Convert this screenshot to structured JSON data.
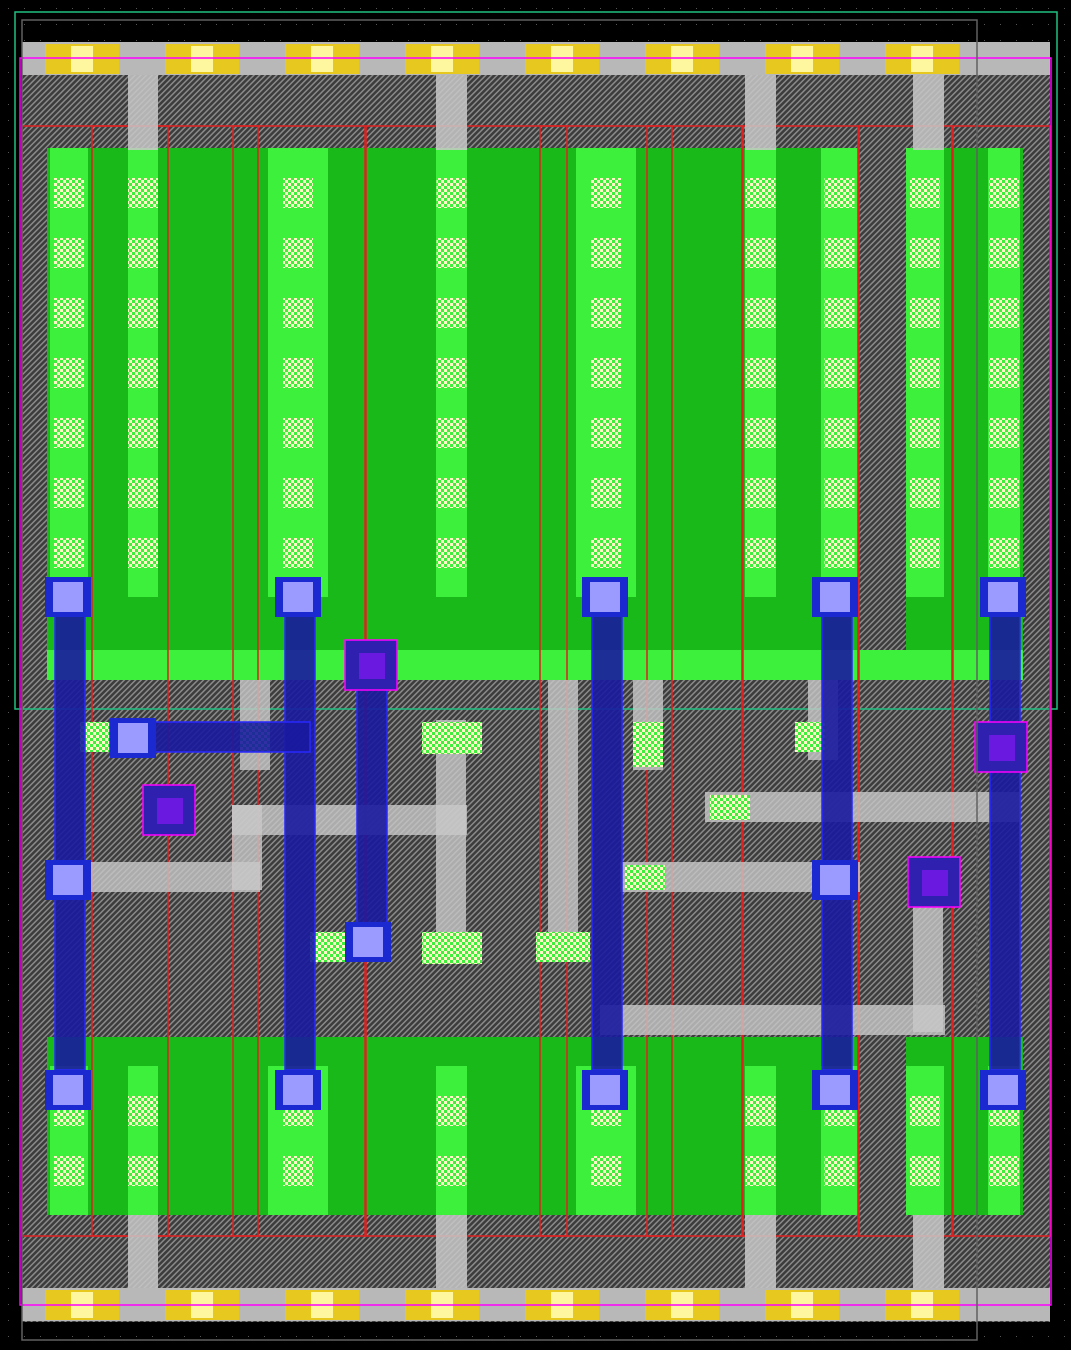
{
  "colors": {
    "background": "#000000",
    "substrate": "#4b4b4b",
    "diffusion": "#19b919",
    "diffusion_contact": "#3cf03c",
    "poly": "#e02020",
    "metal1": "#c8c8c8",
    "metal2": "#1a1aa0",
    "via": "#9a9aff",
    "rail_contact": "#e6c81e",
    "boundary": "#ff00ff",
    "well_edge": "#20c080"
  }
}
